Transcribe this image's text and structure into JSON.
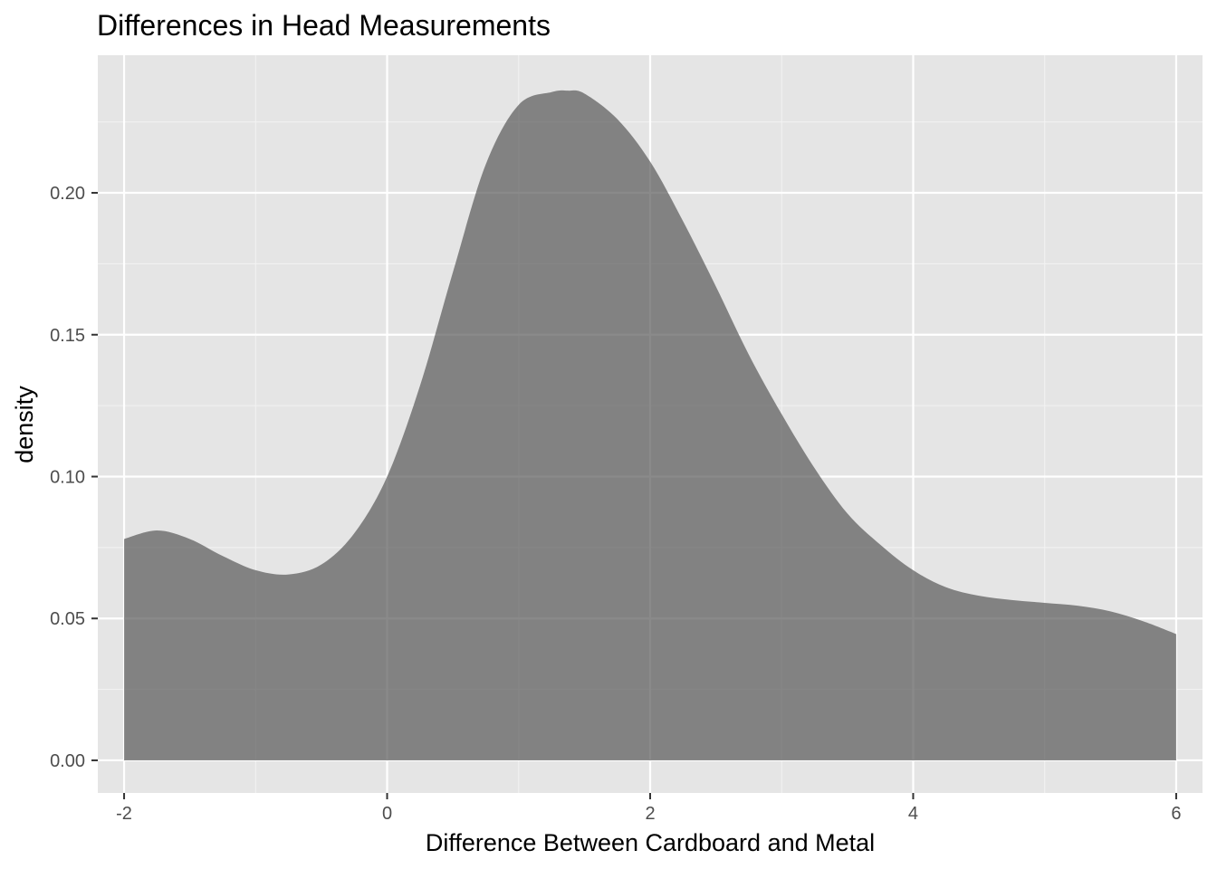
{
  "chart_data": {
    "type": "area",
    "title": "Differences in Head Measurements",
    "xlabel": "Difference Between Cardboard and Metal",
    "ylabel": "density",
    "xlim": [
      -2.2,
      6.2
    ],
    "ylim": [
      -0.0115,
      0.2485
    ],
    "x_ticks": [
      -2,
      0,
      2,
      4,
      6
    ],
    "x_tick_labels": [
      "-2",
      "0",
      "2",
      "4",
      "6"
    ],
    "y_ticks": [
      0,
      0.05,
      0.1,
      0.15,
      0.2
    ],
    "y_tick_labels": [
      "0.00",
      "0.05",
      "0.10",
      "0.15",
      "0.20"
    ],
    "grid": true,
    "series": [
      {
        "fill": "#595959",
        "fill_opacity": 0.7,
        "x": [
          -2,
          -1.75,
          -1.5,
          -1.25,
          -1.0,
          -0.75,
          -0.5,
          -0.25,
          0,
          0.25,
          0.5,
          0.75,
          1.0,
          1.25,
          1.375,
          1.5,
          1.75,
          2.0,
          2.25,
          2.5,
          2.75,
          3.0,
          3.25,
          3.5,
          3.75,
          4.0,
          4.25,
          4.5,
          4.75,
          5.0,
          5.25,
          5.5,
          5.75,
          6.0
        ],
        "y": [
          0.078,
          0.081,
          0.078,
          0.072,
          0.067,
          0.0655,
          0.069,
          0.08,
          0.1,
          0.132,
          0.172,
          0.21,
          0.231,
          0.2355,
          0.236,
          0.235,
          0.226,
          0.211,
          0.19,
          0.167,
          0.143,
          0.122,
          0.103,
          0.087,
          0.076,
          0.067,
          0.061,
          0.058,
          0.0565,
          0.0555,
          0.0545,
          0.0525,
          0.049,
          0.0445
        ]
      }
    ],
    "colors": {
      "panel_background": "#e5e5e5",
      "grid_major": "#ffffff",
      "grid_minor": "#f2f2f2",
      "tick_color": "#333333"
    }
  }
}
